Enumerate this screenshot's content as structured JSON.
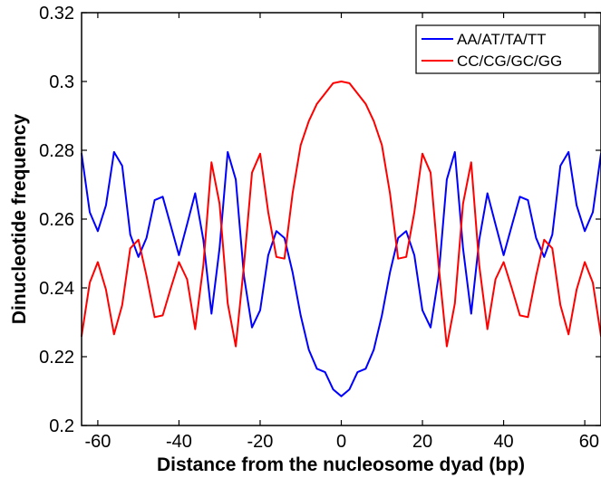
{
  "chart_data": {
    "type": "line",
    "title": "",
    "xlabel": "Distance from the nucleosome dyad (bp)",
    "ylabel": "Dinucleotide frequency",
    "xlim": [
      -64,
      64
    ],
    "ylim": [
      0.2,
      0.32
    ],
    "xticks": [
      -60,
      -40,
      -20,
      0,
      20,
      40,
      60
    ],
    "yticks": [
      0.2,
      0.22,
      0.24,
      0.26,
      0.28,
      0.3,
      0.32
    ],
    "xtick_labels": [
      "-60",
      "-40",
      "-20",
      "0",
      "20",
      "40",
      "60"
    ],
    "ytick_labels": [
      "0.2",
      "0.22",
      "0.24",
      "0.26",
      "0.28",
      "0.3",
      "0.32"
    ],
    "grid": false,
    "legend_position": "top-right",
    "series": [
      {
        "name": "AA/AT/TA/TT",
        "color": "#0000ff",
        "x": [
          -64,
          -62,
          -60,
          -58,
          -56,
          -54,
          -52,
          -50,
          -48,
          -46,
          -44,
          -42,
          -40,
          -38,
          -36,
          -34,
          -32,
          -30,
          -28,
          -26,
          -24,
          -22,
          -20,
          -18,
          -16,
          -14,
          -12,
          -10,
          -8,
          -6,
          -4,
          -2,
          0,
          2,
          4,
          6,
          8,
          10,
          12,
          14,
          16,
          18,
          20,
          22,
          24,
          26,
          28,
          30,
          32,
          34,
          36,
          38,
          40,
          42,
          44,
          46,
          48,
          50,
          52,
          54,
          56,
          58,
          60,
          62,
          64
        ],
        "y": [
          0.279,
          0.262,
          0.2565,
          0.264,
          0.2795,
          0.2755,
          0.2555,
          0.249,
          0.2545,
          0.2655,
          0.2665,
          0.258,
          0.2495,
          0.2585,
          0.2675,
          0.254,
          0.2325,
          0.2515,
          0.2795,
          0.2715,
          0.2435,
          0.2285,
          0.2335,
          0.2495,
          0.2565,
          0.2545,
          0.2445,
          0.232,
          0.222,
          0.2165,
          0.2155,
          0.2105,
          0.2085,
          0.2105,
          0.2155,
          0.2165,
          0.222,
          0.232,
          0.2445,
          0.2545,
          0.2565,
          0.2495,
          0.2335,
          0.2285,
          0.2435,
          0.2715,
          0.2795,
          0.2515,
          0.2325,
          0.254,
          0.2675,
          0.2585,
          0.2495,
          0.258,
          0.2665,
          0.2655,
          0.2545,
          0.249,
          0.2555,
          0.2755,
          0.2795,
          0.264,
          0.2565,
          0.262,
          0.279
        ]
      },
      {
        "name": "CC/CG/GC/GG",
        "color": "#ff0000",
        "x": [
          -64,
          -62,
          -60,
          -58,
          -56,
          -54,
          -52,
          -50,
          -48,
          -46,
          -44,
          -42,
          -40,
          -38,
          -36,
          -34,
          -32,
          -30,
          -28,
          -26,
          -24,
          -22,
          -20,
          -18,
          -16,
          -14,
          -12,
          -10,
          -8,
          -6,
          -4,
          -2,
          0,
          2,
          4,
          6,
          8,
          10,
          12,
          14,
          16,
          18,
          20,
          22,
          24,
          26,
          28,
          30,
          32,
          34,
          36,
          38,
          40,
          42,
          44,
          46,
          48,
          50,
          52,
          54,
          56,
          58,
          60,
          62,
          64
        ],
        "y": [
          0.226,
          0.2415,
          0.2475,
          0.2395,
          0.2265,
          0.235,
          0.2515,
          0.254,
          0.2435,
          0.2315,
          0.232,
          0.24,
          0.2475,
          0.2425,
          0.228,
          0.2465,
          0.2765,
          0.2645,
          0.2355,
          0.223,
          0.2465,
          0.2735,
          0.279,
          0.262,
          0.249,
          0.2485,
          0.2675,
          0.2815,
          0.2885,
          0.2935,
          0.2965,
          0.2995,
          0.3,
          0.2995,
          0.2965,
          0.2935,
          0.2885,
          0.2815,
          0.2675,
          0.2485,
          0.249,
          0.262,
          0.279,
          0.2735,
          0.2465,
          0.223,
          0.2355,
          0.2645,
          0.2765,
          0.2465,
          0.228,
          0.2425,
          0.2475,
          0.24,
          0.232,
          0.2315,
          0.2435,
          0.254,
          0.2515,
          0.235,
          0.2265,
          0.2395,
          0.2475,
          0.2415,
          0.226
        ]
      }
    ]
  }
}
